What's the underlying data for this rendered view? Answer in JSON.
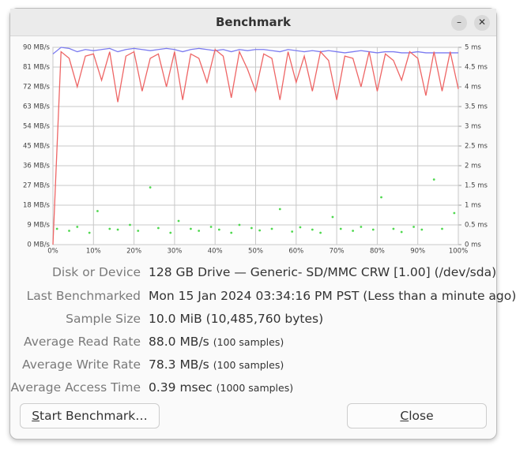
{
  "window": {
    "title": "Benchmark"
  },
  "chart_data": {
    "type": "line",
    "xlim": [
      0,
      100
    ],
    "xticks": [
      {
        "value": 0,
        "label": "0%"
      },
      {
        "value": 10,
        "label": "10%"
      },
      {
        "value": 20,
        "label": "20%"
      },
      {
        "value": 30,
        "label": "30%"
      },
      {
        "value": 40,
        "label": "40%"
      },
      {
        "value": 50,
        "label": "50%"
      },
      {
        "value": 60,
        "label": "60%"
      },
      {
        "value": 70,
        "label": "70%"
      },
      {
        "value": 80,
        "label": "80%"
      },
      {
        "value": 90,
        "label": "90%"
      },
      {
        "value": 100,
        "label": "100%"
      }
    ],
    "ylim": [
      0,
      90
    ],
    "yticks": [
      {
        "value": 0,
        "label": "0 MB/s"
      },
      {
        "value": 9,
        "label": "9 MB/s"
      },
      {
        "value": 18,
        "label": "18 MB/s"
      },
      {
        "value": 27,
        "label": "27 MB/s"
      },
      {
        "value": 36,
        "label": "36 MB/s"
      },
      {
        "value": 45,
        "label": "45 MB/s"
      },
      {
        "value": 54,
        "label": "54 MB/s"
      },
      {
        "value": 63,
        "label": "63 MB/s"
      },
      {
        "value": 72,
        "label": "72 MB/s"
      },
      {
        "value": 81,
        "label": "81 MB/s"
      },
      {
        "value": 90,
        "label": "90 MB/s"
      }
    ],
    "y2lim": [
      0,
      5
    ],
    "y2ticks": [
      {
        "value": 0,
        "label": "0 ms"
      },
      {
        "value": 0.5,
        "label": "0.5 ms"
      },
      {
        "value": 1,
        "label": "1 ms"
      },
      {
        "value": 1.5,
        "label": "1.5 ms"
      },
      {
        "value": 2,
        "label": "2 ms"
      },
      {
        "value": 2.5,
        "label": "2.5 ms"
      },
      {
        "value": 3,
        "label": "3 ms"
      },
      {
        "value": 3.5,
        "label": "3.5 ms"
      },
      {
        "value": 4,
        "label": "4 ms"
      },
      {
        "value": 4.5,
        "label": "4.5 ms"
      },
      {
        "value": 5,
        "label": "5 ms"
      }
    ],
    "grid": true,
    "series": [
      {
        "color": "#7b7bf0",
        "x": [
          0,
          2,
          4,
          6,
          8,
          10,
          12,
          14,
          16,
          18,
          20,
          22,
          24,
          26,
          28,
          30,
          32,
          34,
          36,
          38,
          40,
          42,
          44,
          46,
          48,
          50,
          52,
          54,
          56,
          58,
          60,
          62,
          64,
          66,
          68,
          70,
          72,
          74,
          76,
          78,
          80,
          82,
          84,
          86,
          88,
          90,
          92,
          94,
          96,
          98,
          100
        ],
        "values": [
          87,
          90,
          89.5,
          88,
          89,
          88.5,
          89,
          89.5,
          88,
          89,
          89.5,
          89,
          88.5,
          89,
          89.5,
          89,
          88,
          89,
          89.5,
          89,
          88.5,
          89,
          88,
          89,
          88.5,
          89,
          89,
          88.5,
          88,
          89,
          88.5,
          88,
          88.5,
          88,
          88.5,
          88,
          87.5,
          88,
          88.5,
          88,
          87.5,
          88,
          88,
          87.5,
          87.5,
          88,
          87.5,
          87.5,
          87.5,
          87.5,
          87.5
        ]
      },
      {
        "color": "#ee6565",
        "x": [
          0,
          2,
          4,
          6,
          8,
          10,
          12,
          14,
          16,
          18,
          20,
          22,
          24,
          26,
          28,
          30,
          32,
          34,
          36,
          38,
          40,
          42,
          44,
          46,
          48,
          50,
          52,
          54,
          56,
          58,
          60,
          62,
          64,
          66,
          68,
          70,
          72,
          74,
          76,
          78,
          80,
          82,
          84,
          86,
          88,
          90,
          92,
          94,
          96,
          98,
          100
        ],
        "values": [
          0,
          88,
          85,
          72,
          86,
          87,
          75,
          88,
          65,
          86,
          88,
          70,
          85,
          87,
          72,
          88,
          66,
          87,
          85,
          74,
          89,
          86,
          67,
          88,
          80,
          70,
          87,
          85,
          66,
          88,
          74,
          86,
          70,
          88,
          84,
          66,
          86,
          85,
          72,
          88,
          70,
          87,
          84,
          75,
          88,
          85,
          68,
          88,
          70,
          88,
          71
        ]
      },
      {
        "color": "#4fd84f",
        "axis": "y2",
        "type": "scatter",
        "x": [
          1,
          4,
          6,
          9,
          11,
          14,
          16,
          19,
          21,
          24,
          26,
          29,
          31,
          34,
          36,
          39,
          41,
          44,
          46,
          49,
          51,
          54,
          56,
          59,
          61,
          64,
          66,
          69,
          71,
          74,
          76,
          79,
          81,
          84,
          86,
          89,
          91,
          94,
          96,
          99
        ],
        "values": [
          0.4,
          0.35,
          0.45,
          0.3,
          0.85,
          0.4,
          0.38,
          0.5,
          0.35,
          1.45,
          0.42,
          0.3,
          0.6,
          0.4,
          0.35,
          0.45,
          0.38,
          0.3,
          0.5,
          0.42,
          0.36,
          0.4,
          0.9,
          0.33,
          0.44,
          0.38,
          0.3,
          0.7,
          0.4,
          0.35,
          0.45,
          0.38,
          1.2,
          0.4,
          0.32,
          0.45,
          0.38,
          1.65,
          0.4,
          0.8
        ]
      }
    ]
  },
  "info": [
    {
      "label": "Disk or Device",
      "value": "128 GB Drive — Generic- SD/MMC CRW [1.00] (/dev/sda)"
    },
    {
      "label": "Last Benchmarked",
      "value": "Mon 15 Jan 2024 03:34:16 PM PST (Less than a minute ago)"
    },
    {
      "label": "Sample Size",
      "value": "10.0 MiB (10,485,760 bytes)"
    },
    {
      "label": "Average Read Rate",
      "value": "88.0 MB/s",
      "note": "(100 samples)"
    },
    {
      "label": "Average Write Rate",
      "value": "78.3 MB/s",
      "note": "(100 samples)"
    },
    {
      "label": "Average Access Time",
      "value": "0.39 msec",
      "note": "(1000 samples)"
    }
  ],
  "buttons": {
    "start": "Start Benchmark…",
    "close": "Close"
  }
}
